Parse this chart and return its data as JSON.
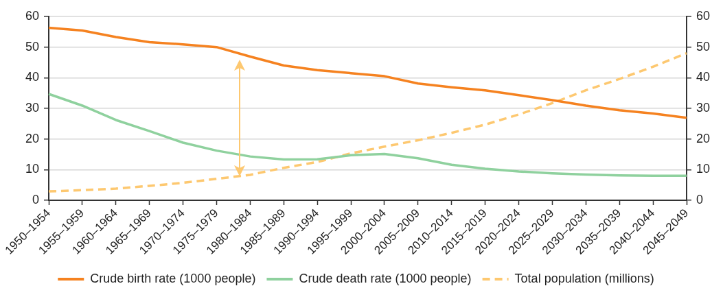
{
  "chart_data": {
    "type": "line",
    "categories": [
      "1950–1954",
      "1955–1959",
      "1960–1964",
      "1965–1969",
      "1970–1974",
      "1975–1979",
      "1980–1984",
      "1985–1989",
      "1990–1994",
      "1995–1999",
      "2000–2004",
      "2005–2009",
      "2010–2014",
      "2015–2019",
      "2020–2024",
      "2025–2029",
      "2030–2034",
      "2035–2039",
      "2040–2044",
      "2045–2049"
    ],
    "series": [
      {
        "name": "Crude birth rate (1000 people)",
        "color": "#f58220",
        "values": [
          56.3,
          55.4,
          53.3,
          51.6,
          50.9,
          50.0,
          46.9,
          44.0,
          42.5,
          41.5,
          40.5,
          38.1,
          36.9,
          35.9,
          34.3,
          32.7,
          30.9,
          29.4,
          28.3,
          26.9
        ]
      },
      {
        "name": "Crude death rate (1000 people)",
        "color": "#8fd19e",
        "values": [
          34.7,
          30.9,
          26.2,
          22.6,
          18.8,
          16.2,
          14.3,
          13.3,
          13.4,
          14.7,
          15.1,
          13.7,
          11.6,
          10.3,
          9.4,
          8.8,
          8.4,
          8.1,
          8.0,
          8.0
        ]
      },
      {
        "name": "Total population (millions)",
        "color": "#fdc870",
        "axis": "y2",
        "line_style": "dashed",
        "values": [
          2.9,
          3.3,
          3.8,
          4.7,
          5.7,
          7.0,
          8.3,
          10.6,
          12.5,
          15.3,
          17.5,
          19.6,
          22.0,
          24.7,
          28.0,
          31.7,
          35.9,
          39.6,
          43.6,
          48.0
        ]
      }
    ],
    "ylim": [
      0,
      60
    ],
    "yticks": [
      0,
      10,
      20,
      30,
      40,
      50,
      60
    ],
    "y2lim": [
      0,
      60
    ],
    "y2ticks": [
      0,
      10,
      20,
      30,
      40,
      50,
      60
    ],
    "grid": "y",
    "legend": "bottom"
  }
}
